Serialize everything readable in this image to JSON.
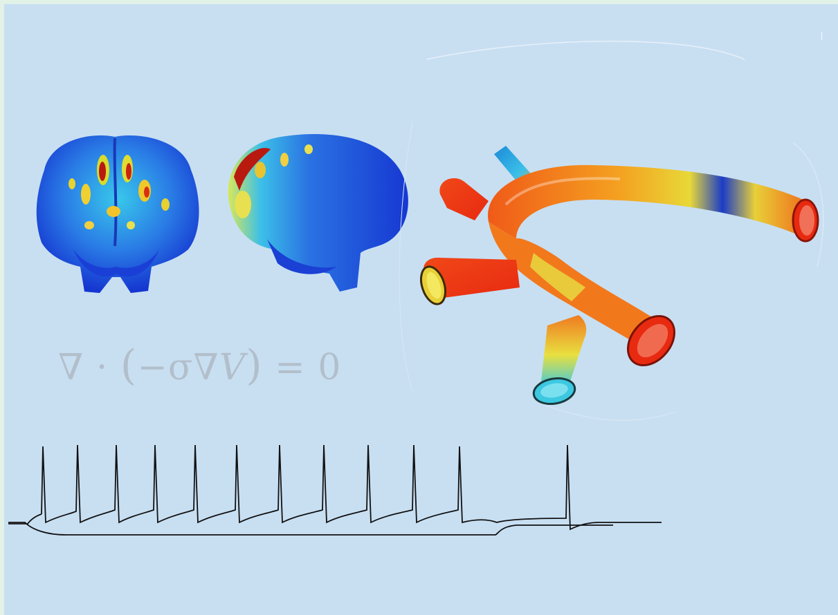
{
  "equation": {
    "nabla": "∇",
    "dot": "·",
    "open_paren": "(",
    "minus_sigma_nabla": "−σ∇",
    "variable": "V",
    "close_paren": ")",
    "rhs": "= 0"
  },
  "figure_icons": {
    "brain_front": "brain-front-heatmap",
    "brain_side": "brain-side-heatmap",
    "vessel": "vessel-bifurcation-heatmap",
    "trace": "neuron-spike-trace"
  },
  "colors": {
    "background": "#c8dff2",
    "border": "#e2f2e6",
    "heat_low": "#1438d8",
    "heat_mid": "#3cc0e8",
    "heat_high": "#e82a10",
    "trace": "#111111"
  }
}
